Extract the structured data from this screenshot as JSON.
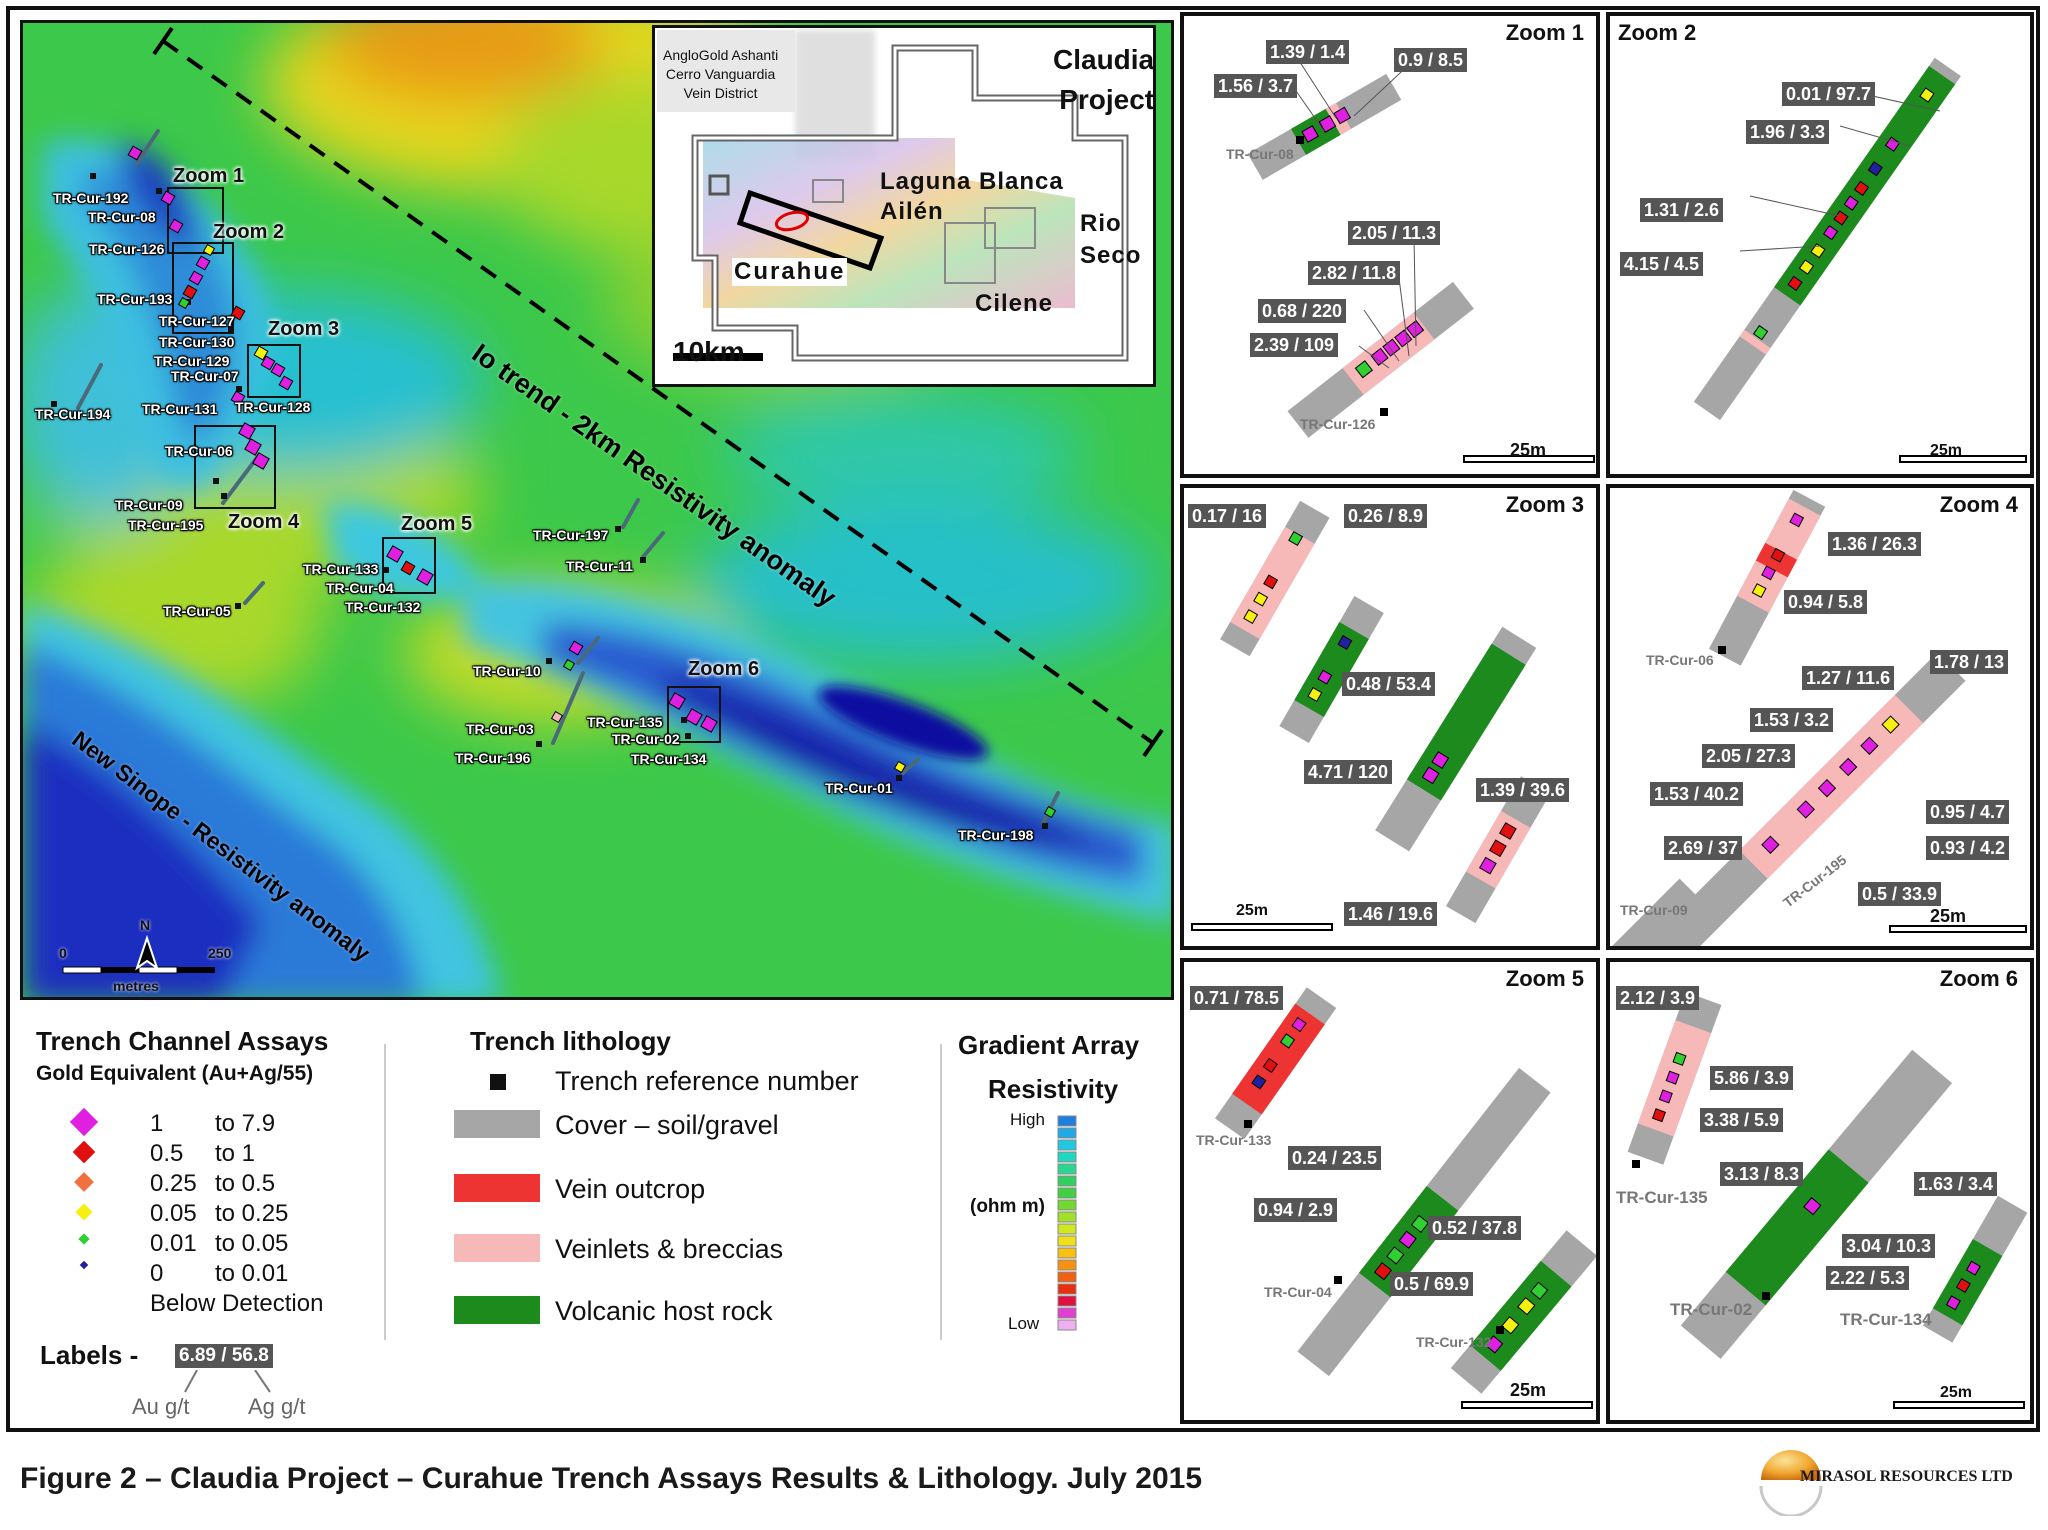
{
  "main_map": {
    "zooms": [
      "Zoom 1",
      "Zoom 2",
      "Zoom 3",
      "Zoom 4",
      "Zoom 5",
      "Zoom 6"
    ],
    "trenches": [
      "TR-Cur-192",
      "TR-Cur-08",
      "TR-Cur-126",
      "TR-Cur-193",
      "TR-Cur-127",
      "TR-Cur-130",
      "TR-Cur-129",
      "TR-Cur-07",
      "TR-Cur-131",
      "TR-Cur-128",
      "TR-Cur-194",
      "TR-Cur-06",
      "TR-Cur-09",
      "TR-Cur-195",
      "TR-Cur-05",
      "TR-Cur-133",
      "TR-Cur-04",
      "TR-Cur-132",
      "TR-Cur-197",
      "TR-Cur-11",
      "TR-Cur-10",
      "TR-Cur-03",
      "TR-Cur-196",
      "TR-Cur-135",
      "TR-Cur-02",
      "TR-Cur-134",
      "TR-Cur-01",
      "TR-Cur-198"
    ],
    "io_trend": "Io trend - 2km Resistivity anomaly",
    "new_sinope": "New Sinope - Resistivity anomaly",
    "scale_0": "0",
    "scale_250": "250",
    "scale_unit": "metres",
    "north": "N"
  },
  "inset": {
    "district": [
      "AngloGold Ashanti",
      "Cerro Vanguardia",
      "Vein District"
    ],
    "project": [
      "Claudia",
      "Project"
    ],
    "laguna": "Laguna Blanca",
    "ailen": "Ailén",
    "rio": [
      "Rio",
      "Seco"
    ],
    "curahue": "Curahue",
    "cilene": "Cilene",
    "scale": "10km"
  },
  "zoom_panels": [
    {
      "title": "Zoom 1",
      "tags": [
        "1.39 / 1.4",
        "0.9 / 8.5",
        "1.56 / 3.7",
        "2.05 / 11.3",
        "2.82 / 11.8",
        "0.68 / 220",
        "2.39 / 109"
      ],
      "refs": [
        "TR-Cur-08",
        "TR-Cur-126"
      ],
      "scale": "25m"
    },
    {
      "title": "Zoom 2",
      "tags": [
        "0.01 / 97.7",
        "1.96 / 3.3",
        "1.31 / 2.6",
        "4.15 / 4.5"
      ],
      "refs": [],
      "scale": "25m"
    },
    {
      "title": "Zoom 3",
      "tags": [
        "0.17 / 16",
        "0.26 / 8.9",
        "0.48 / 53.4",
        "4.71 / 120",
        "1.39 / 39.6",
        "1.46 / 19.6"
      ],
      "refs": [],
      "scale": "25m"
    },
    {
      "title": "Zoom 4",
      "tags": [
        "1.36 / 26.3",
        "0.94 / 5.8",
        "1.27 / 11.6",
        "1.78 / 13",
        "1.53 / 3.2",
        "2.05 / 27.3",
        "1.53 / 40.2",
        "0.95 / 4.7",
        "2.69 / 37",
        "0.93 / 4.2",
        "0.5 / 33.9"
      ],
      "refs": [
        "TR-Cur-06",
        "TR-Cur-09",
        "TR-Cur-195"
      ],
      "scale": "25m"
    },
    {
      "title": "Zoom 5",
      "tags": [
        "0.71 / 78.5",
        "0.24 / 23.5",
        "0.94 / 2.9",
        "0.52 / 37.8",
        "0.5 / 69.9"
      ],
      "refs": [
        "TR-Cur-133",
        "TR-Cur-04",
        "TR-Cur-132"
      ],
      "scale": "25m"
    },
    {
      "title": "Zoom 6",
      "tags": [
        "2.12 / 3.9",
        "5.86 / 3.9",
        "3.38 / 5.9",
        "3.13 / 8.3",
        "1.63 / 3.4",
        "3.04 / 10.3",
        "2.22 / 5.3"
      ],
      "refs": [
        "TR-Cur-135",
        "TR-Cur-02",
        "TR-Cur-134"
      ],
      "scale": "25m"
    }
  ],
  "legend": {
    "assays_title": "Trench Channel Assays",
    "assays_sub": "Gold Equivalent (Au+Ag/55)",
    "ranges": [
      {
        "from": "1",
        "to": "to 7.9",
        "color": "#e020e0"
      },
      {
        "from": "0.5",
        "to": "to 1",
        "color": "#e01010"
      },
      {
        "from": "0.25",
        "to": "to 0.5",
        "color": "#f07040"
      },
      {
        "from": "0.05",
        "to": "to 0.25",
        "color": "#f5f010"
      },
      {
        "from": "0.01",
        "to": "to 0.05",
        "color": "#30d030"
      },
      {
        "from": "0",
        "to": "to 0.01",
        "color": "#2020a0"
      }
    ],
    "below": "Below Detection",
    "labels_word": "Labels -",
    "label_example": "6.89 / 56.8",
    "au": "Au g/t",
    "ag": "Ag g/t",
    "litho_title": "Trench lithology",
    "litho": [
      {
        "label": "Trench reference number",
        "color": "#111111"
      },
      {
        "label": "Cover – soil/gravel",
        "color": "#a6a6a6"
      },
      {
        "label": "Vein outcrop",
        "color": "#ee3333"
      },
      {
        "label": "Veinlets & breccias",
        "color": "#f7b8b8"
      },
      {
        "label": "Volcanic host rock",
        "color": "#1c8a1c"
      }
    ],
    "grad_title": [
      "Gradient Array",
      "Resistivity"
    ],
    "high": "High",
    "unit": "(ohm m)",
    "low": "Low"
  },
  "caption": "Figure 2 – Claudia Project – Curahue Trench Assays Results & Lithology. July 2015",
  "brand": "MIRASOL RESOURCES LTD"
}
